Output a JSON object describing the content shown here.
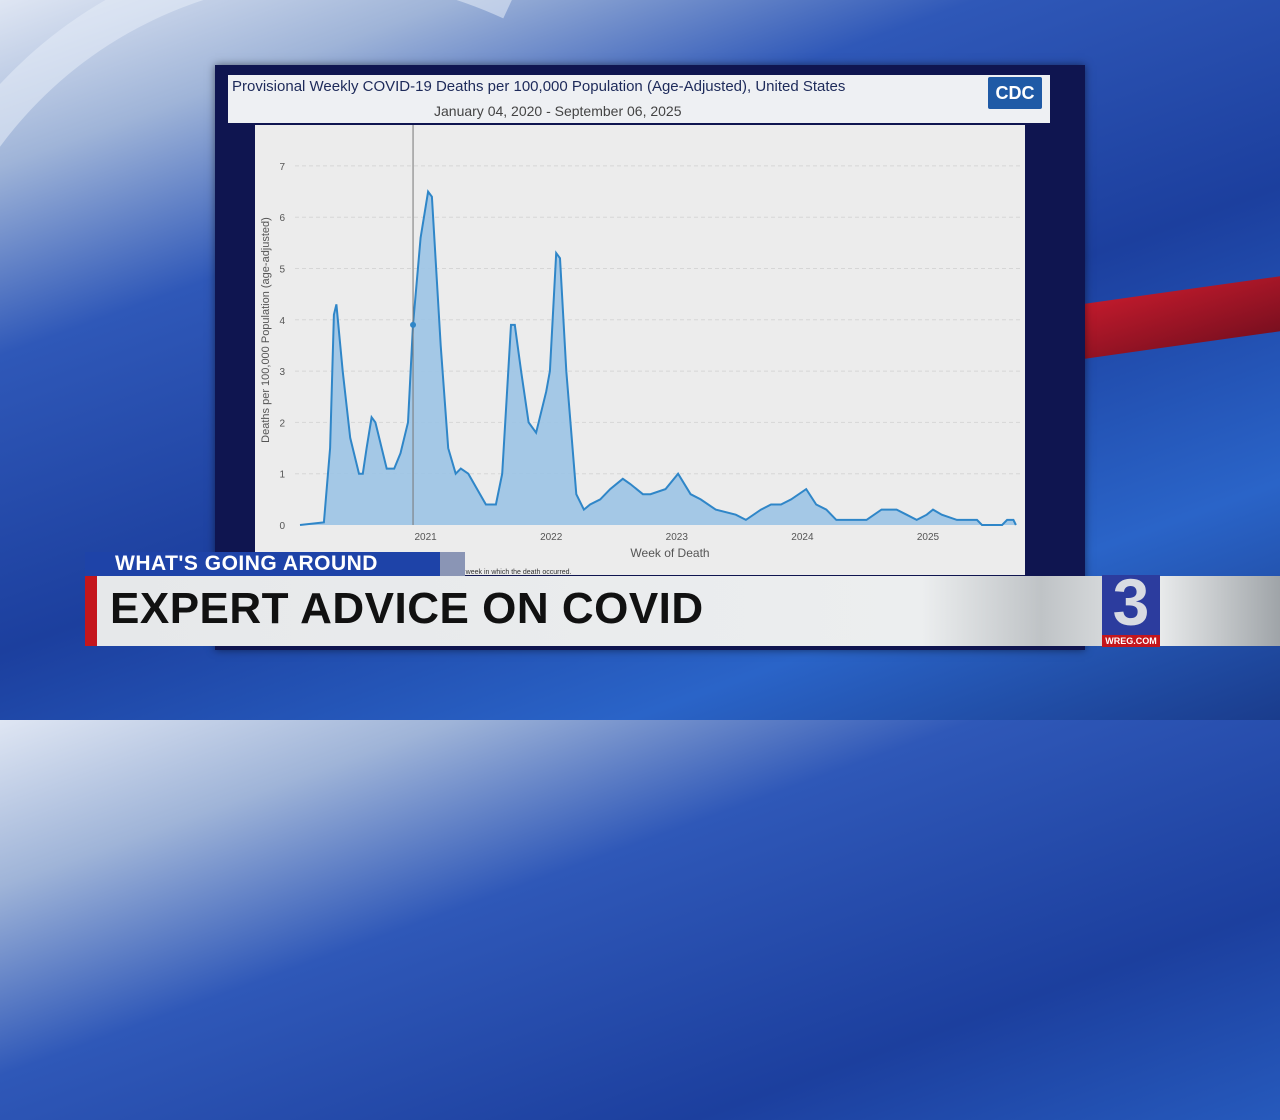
{
  "broadcast": {
    "segment_label": "WHAT'S GOING AROUND",
    "headline": "EXPERT ADVICE ON COVID",
    "station_logo_number": "3",
    "station_logo_text": "WREG.COM"
  },
  "cdc_logo": "CDC",
  "footnote": "ological week in which the death occurred.",
  "chart_data": {
    "type": "area",
    "title": "Provisional Weekly COVID-19 Deaths per 100,000 Population (Age-Adjusted), United States",
    "subtitle": "January 04, 2020 - September 06, 2025",
    "xlabel": "Week of Death",
    "ylabel": "Deaths per 100,000 Population (age-adjusted)",
    "ylim": [
      0,
      7
    ],
    "yticks": [
      "0",
      "1",
      "2",
      "3",
      "4",
      "5",
      "6",
      "7"
    ],
    "xticks": [
      "2021",
      "2022",
      "2023",
      "2024",
      "2025"
    ],
    "grid": true,
    "color": "#2f86c8",
    "highlight_point": [
      2020.9,
      3.9
    ],
    "points": [
      [
        2020.0,
        0
      ],
      [
        2020.19,
        0.05
      ],
      [
        2020.24,
        1.5
      ],
      [
        2020.27,
        4.1
      ],
      [
        2020.29,
        4.3
      ],
      [
        2020.34,
        3.0
      ],
      [
        2020.4,
        1.7
      ],
      [
        2020.47,
        1.0
      ],
      [
        2020.5,
        1.0
      ],
      [
        2020.53,
        1.5
      ],
      [
        2020.57,
        2.1
      ],
      [
        2020.6,
        2.0
      ],
      [
        2020.69,
        1.1
      ],
      [
        2020.75,
        1.1
      ],
      [
        2020.8,
        1.4
      ],
      [
        2020.86,
        2.0
      ],
      [
        2020.9,
        3.9
      ],
      [
        2020.96,
        5.6
      ],
      [
        2021.02,
        6.5
      ],
      [
        2021.05,
        6.4
      ],
      [
        2021.12,
        3.5
      ],
      [
        2021.18,
        1.5
      ],
      [
        2021.24,
        1.0
      ],
      [
        2021.28,
        1.1
      ],
      [
        2021.34,
        1.0
      ],
      [
        2021.48,
        0.4
      ],
      [
        2021.56,
        0.4
      ],
      [
        2021.61,
        1.0
      ],
      [
        2021.68,
        3.9
      ],
      [
        2021.71,
        3.9
      ],
      [
        2021.76,
        3.0
      ],
      [
        2021.82,
        2.0
      ],
      [
        2021.88,
        1.8
      ],
      [
        2021.96,
        2.6
      ],
      [
        2021.99,
        3.0
      ],
      [
        2022.04,
        5.3
      ],
      [
        2022.07,
        5.2
      ],
      [
        2022.12,
        3.0
      ],
      [
        2022.2,
        0.6
      ],
      [
        2022.26,
        0.3
      ],
      [
        2022.31,
        0.4
      ],
      [
        2022.39,
        0.5
      ],
      [
        2022.47,
        0.7
      ],
      [
        2022.57,
        0.9
      ],
      [
        2022.63,
        0.8
      ],
      [
        2022.73,
        0.6
      ],
      [
        2022.79,
        0.6
      ],
      [
        2022.91,
        0.7
      ],
      [
        2023.01,
        1.0
      ],
      [
        2023.11,
        0.6
      ],
      [
        2023.19,
        0.5
      ],
      [
        2023.31,
        0.3
      ],
      [
        2023.47,
        0.2
      ],
      [
        2023.55,
        0.1
      ],
      [
        2023.67,
        0.3
      ],
      [
        2023.75,
        0.4
      ],
      [
        2023.83,
        0.4
      ],
      [
        2023.91,
        0.5
      ],
      [
        2024.03,
        0.7
      ],
      [
        2024.11,
        0.4
      ],
      [
        2024.19,
        0.3
      ],
      [
        2024.27,
        0.1
      ],
      [
        2024.51,
        0.1
      ],
      [
        2024.63,
        0.3
      ],
      [
        2024.75,
        0.3
      ],
      [
        2024.83,
        0.2
      ],
      [
        2024.91,
        0.1
      ],
      [
        2024.99,
        0.2
      ],
      [
        2025.04,
        0.3
      ],
      [
        2025.11,
        0.2
      ],
      [
        2025.23,
        0.1
      ],
      [
        2025.39,
        0.1
      ],
      [
        2025.43,
        0.0
      ],
      [
        2025.59,
        0.0
      ],
      [
        2025.63,
        0.1
      ],
      [
        2025.68,
        0.1
      ],
      [
        2025.7,
        0.0
      ]
    ]
  }
}
